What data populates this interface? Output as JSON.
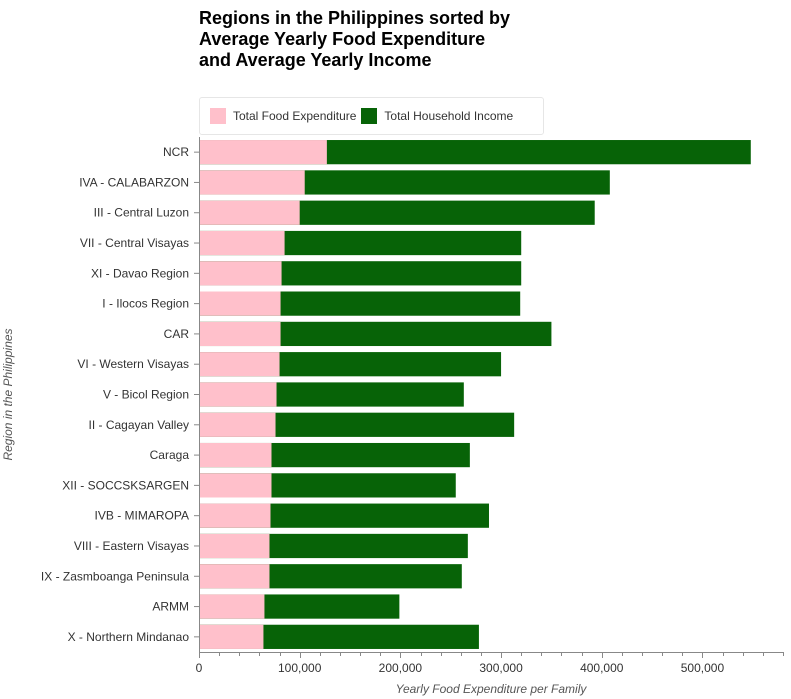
{
  "chart_data": {
    "type": "bar",
    "orientation": "horizontal",
    "stacked": false,
    "title": [
      "Regions in the Philippines sorted by",
      "Average Yearly Food Expenditure",
      "and Average Yearly Income"
    ],
    "xlabel": "Yearly Food Expenditure per Family",
    "ylabel": "Region in the Philippines",
    "xlim": [
      0,
      580000
    ],
    "x_ticks": [
      "0",
      "100,000",
      "200,000",
      "300,000",
      "400,000",
      "500,000"
    ],
    "x_tick_values": [
      0,
      100000,
      200000,
      300000,
      400000,
      500000
    ],
    "legend_position": "top",
    "grid": false,
    "categories": [
      "NCR",
      "IVA - CALABARZON",
      "III - Central Luzon",
      "VII - Central Visayas",
      "XI - Davao Region",
      "I - Ilocos Region",
      "CAR",
      "VI - Western Visayas",
      "V - Bicol Region",
      "II - Cagayan Valley",
      "Caraga",
      "XII - SOCCSKSARGEN",
      "IVB - MIMAROPA",
      "VIII - Eastern Visayas",
      "IX - Zasmboanga Peninsula",
      "ARMM",
      "X - Northern Mindanao"
    ],
    "series": [
      {
        "name": "Total Household Income",
        "color": "#076307",
        "values": [
          548000,
          408000,
          393000,
          320000,
          320000,
          319000,
          350000,
          300000,
          263000,
          313000,
          269000,
          255000,
          288000,
          267000,
          261000,
          199000,
          278000
        ]
      },
      {
        "name": "Total Food Expenditure",
        "color": "#ffc0cb",
        "values": [
          127000,
          105000,
          100000,
          85000,
          82000,
          81000,
          81000,
          80000,
          77000,
          76000,
          72000,
          72000,
          71000,
          70000,
          70000,
          65000,
          64000
        ]
      }
    ]
  }
}
